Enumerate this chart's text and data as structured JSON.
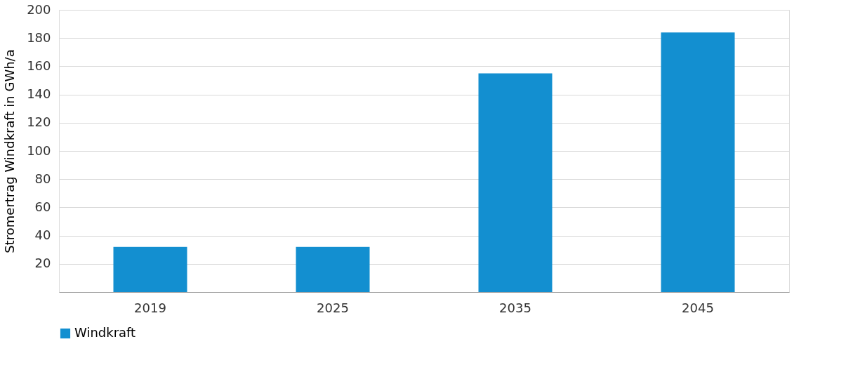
{
  "chart_data": {
    "type": "bar",
    "ylabel": "Stromertrag Windkraft in GWh/a",
    "categories": [
      "2019",
      "2025",
      "2035",
      "2045"
    ],
    "series": [
      {
        "name": "Windkraft",
        "color": "#138fd0",
        "values": [
          32,
          32,
          155,
          184
        ]
      }
    ],
    "ylim": [
      0,
      200
    ],
    "yticks": [
      20,
      40,
      60,
      80,
      100,
      120,
      140,
      160,
      180,
      200
    ],
    "grid": "y",
    "legend": "bottom"
  }
}
